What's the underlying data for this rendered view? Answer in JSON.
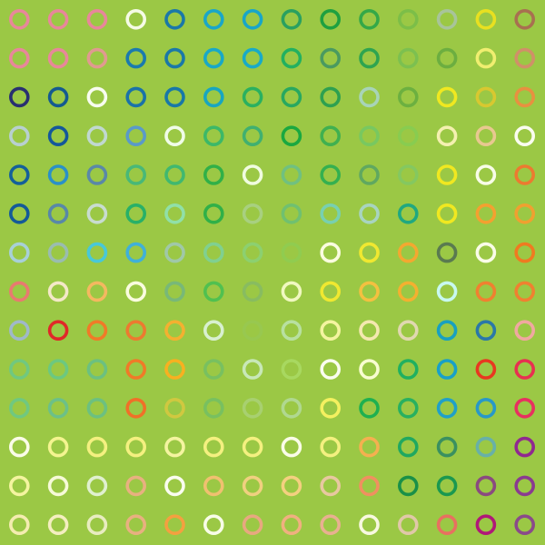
{
  "background": "#9BC845",
  "grid": {
    "rows": 14,
    "cols": 14,
    "colors": [
      [
        "#E8879A",
        "#E8879A",
        "#E8879A",
        "#F5FBE6",
        "#1A78A8",
        "#1AA6C8",
        "#18A6C8",
        "#2AA060",
        "#1EA040",
        "#34A848",
        "#7CBE48",
        "#A8C49A",
        "#E8E020",
        "#A87050"
      ],
      [
        "#E8879A",
        "#E8879A",
        "#E09A90",
        "#1A7AAE",
        "#1A78A8",
        "#18A8C8",
        "#18AAC8",
        "#22B060",
        "#4A9A60",
        "#2EA450",
        "#7CC050",
        "#6CAE40",
        "#F0EE70",
        "#D09068"
      ],
      [
        "#283070",
        "#145A90",
        "#F8FCF0",
        "#1A72A8",
        "#1878A8",
        "#18A6C0",
        "#2AB060",
        "#28A860",
        "#2EA050",
        "#A8D4B8",
        "#6CB040",
        "#F0E820",
        "#D8C830",
        "#E89040"
      ],
      [
        "#B8D0D0",
        "#14589A",
        "#C0D8D0",
        "#5A9AC8",
        "#F0FCE8",
        "#3CB868",
        "#40B070",
        "#1AA840",
        "#40B050",
        "#78C860",
        "#88CC50",
        "#F4F0B0",
        "#E8C890",
        "#FAFCF0"
      ],
      [
        "#14609A",
        "#2A90C8",
        "#5A88A8",
        "#48B878",
        "#40B870",
        "#30B048",
        "#F0FCE0",
        "#70C080",
        "#34B050",
        "#60A860",
        "#84C860",
        "#F0E820",
        "#F8FCE8",
        "#EC7A30"
      ],
      [
        "#145A98",
        "#5888A8",
        "#C8DCD0",
        "#28B068",
        "#90E0A8",
        "#30B048",
        "#A8D080",
        "#70C070",
        "#78D0B0",
        "#A8D4C0",
        "#20A880",
        "#F0E820",
        "#F4A030",
        "#F0A030"
      ],
      [
        "#A8D0D8",
        "#9ABCB0",
        "#48C8D8",
        "#40B0D8",
        "#A0C8A8",
        "#80D090",
        "#8CD070",
        "#90CC50",
        "#FAFCE0",
        "#F0E830",
        "#F4A830",
        "#5A7A50",
        "#FAFCE8",
        "#F07A20"
      ],
      [
        "#E87A70",
        "#F4E8C8",
        "#F4B860",
        "#FAFCE0",
        "#78B878",
        "#50C050",
        "#88BC60",
        "#F0F8C0",
        "#F0E830",
        "#F4C040",
        "#F4B030",
        "#C8F8F0",
        "#F08030",
        "#F08030"
      ],
      [
        "#A0B8C8",
        "#E02828",
        "#F07A28",
        "#EC7A30",
        "#F4B030",
        "#D8F0D0",
        "#98C850",
        "#B8E0A0",
        "#F4F4A0",
        "#F4E8B0",
        "#E0D8B0",
        "#18A0C0",
        "#2A78A8",
        "#F0A8A0"
      ],
      [
        "#70C880",
        "#6CC880",
        "#6CC080",
        "#F07A28",
        "#F8B020",
        "#78C060",
        "#C8E8B8",
        "#A8D860",
        "#FAFCF0",
        "#F8FCD0",
        "#20B060",
        "#18A0C8",
        "#E83820",
        "#E83050"
      ],
      [
        "#70C880",
        "#6CC088",
        "#6CC080",
        "#F07028",
        "#D0C840",
        "#78C060",
        "#A8D070",
        "#B0D890",
        "#F4F060",
        "#1EB050",
        "#28B060",
        "#20A0C8",
        "#2898C8",
        "#E83060"
      ],
      [
        "#FAFCE8",
        "#F4F490",
        "#F4F080",
        "#F4F080",
        "#F4F4A0",
        "#F4F080",
        "#F4F080",
        "#FAFCE8",
        "#F4F080",
        "#F4B050",
        "#20A860",
        "#3A9060",
        "#68B0A8",
        "#902890"
      ],
      [
        "#F4F4A0",
        "#F6FAD8",
        "#E0F0D0",
        "#E8B080",
        "#FAFCF0",
        "#F0C070",
        "#F0D080",
        "#F4D080",
        "#E8C8A0",
        "#F09060",
        "#1A9048",
        "#1A9850",
        "#8A4A80",
        "#8A3A90"
      ],
      [
        "#F4ECB0",
        "#F4EEC0",
        "#E8ECC0",
        "#E8B080",
        "#F4A040",
        "#F8FCE8",
        "#E8A880",
        "#F0B080",
        "#E8B090",
        "#F8F8E0",
        "#E0C8A8",
        "#E87060",
        "#B01878",
        "#8A4A8A"
      ]
    ]
  }
}
